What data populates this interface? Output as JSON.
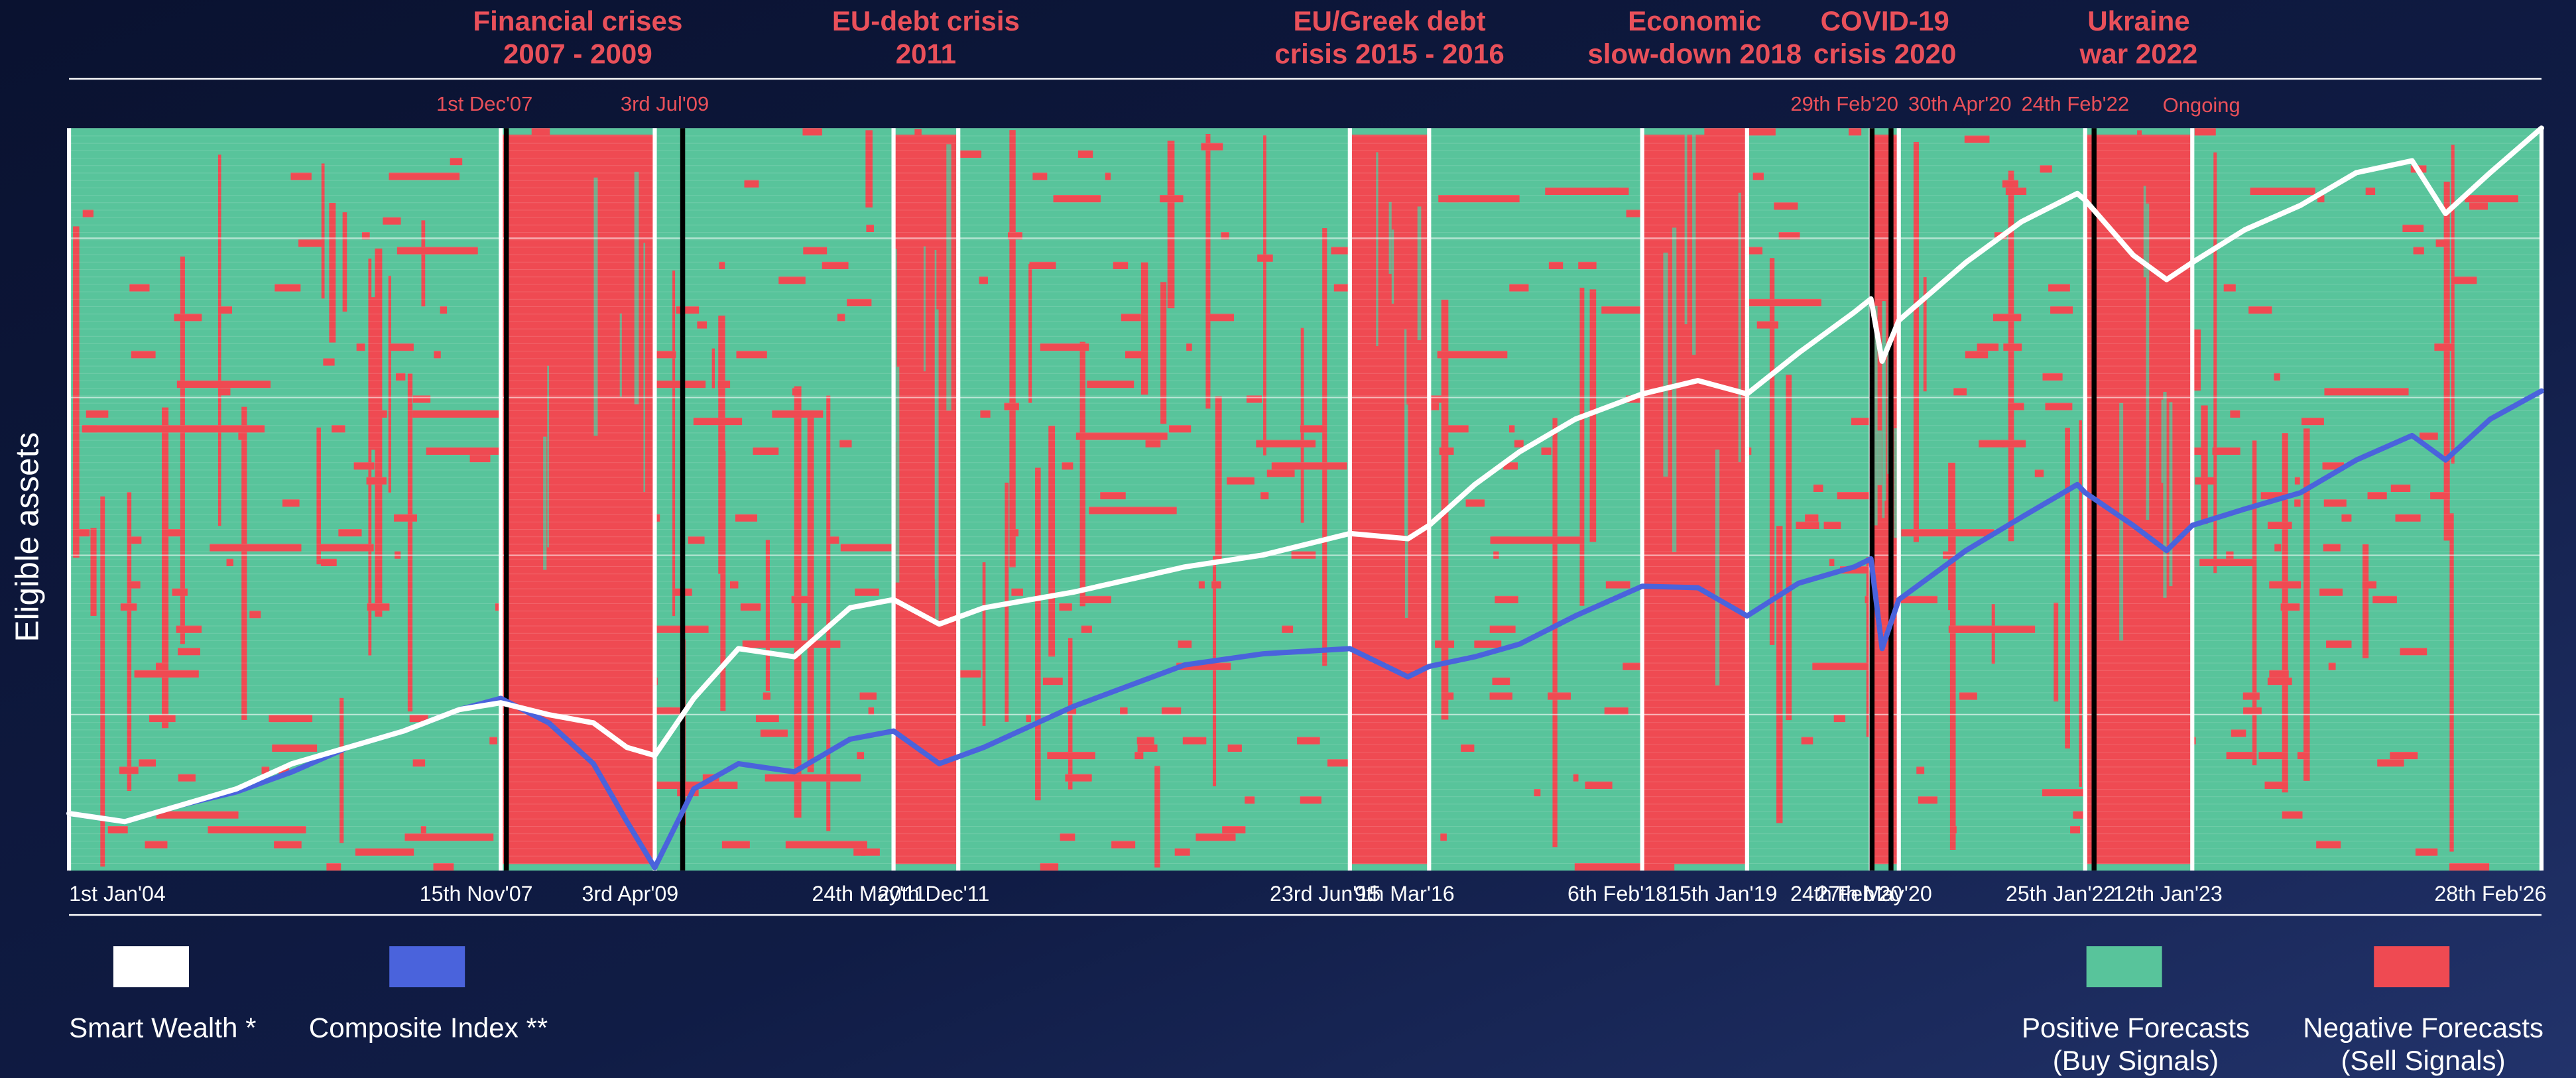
{
  "chart_data": {
    "type": "line",
    "y_label": "Eligible assets",
    "xlim": [
      2004.0,
      2026.16
    ],
    "ylim": [
      0,
      100
    ],
    "xticks": [
      {
        "value": 2004.0,
        "label": "1st Jan'04"
      },
      {
        "value": 2007.87,
        "label": "15th Nov'07"
      },
      {
        "value": 2009.25,
        "label": "3rd Apr'09"
      },
      {
        "value": 2011.39,
        "label": "24th May'11"
      },
      {
        "value": 2011.97,
        "label": "20th Dec'11"
      },
      {
        "value": 2015.48,
        "label": "23rd Jun'15"
      },
      {
        "value": 2016.19,
        "label": "9th Mar'16"
      },
      {
        "value": 2018.1,
        "label": "6th Feb'18"
      },
      {
        "value": 2019.04,
        "label": "15th Jan'19"
      },
      {
        "value": 2020.15,
        "label": "24th Feb'20"
      },
      {
        "value": 2020.4,
        "label": "27th May'20"
      },
      {
        "value": 2022.07,
        "label": "25th Jan'22"
      },
      {
        "value": 2023.03,
        "label": "12th Jan'23"
      },
      {
        "value": 2026.16,
        "label": "28th Feb'26"
      }
    ],
    "crises": [
      {
        "title": [
          "Financial crises",
          "2007 - 2009"
        ],
        "start": 2007.87,
        "end": 2009.25
      },
      {
        "title": [
          "EU-debt crisis",
          "2011"
        ],
        "start": 2011.39,
        "end": 2011.97
      },
      {
        "title": [
          "EU/Greek debt",
          "crisis 2015 - 2016"
        ],
        "start": 2015.48,
        "end": 2016.19
      },
      {
        "title": [
          "Economic",
          "slow-down 2018"
        ],
        "start": 2018.1,
        "end": 2019.04
      },
      {
        "title": [
          "COVID-19",
          "crisis 2020"
        ],
        "start": 2020.15,
        "end": 2020.4
      },
      {
        "title": [
          "Ukraine",
          "war 2022"
        ],
        "start": 2022.07,
        "end": 2023.03,
        "status": "Ongoing"
      }
    ],
    "events": [
      {
        "label": "1st Dec'07",
        "x": 2007.92
      },
      {
        "label": "3rd Jul'09",
        "x": 2009.5
      },
      {
        "label": "29th Feb'20",
        "x": 2020.16
      },
      {
        "label": "30th Apr'20",
        "x": 2020.33
      },
      {
        "label": "24th Feb'22",
        "x": 2022.15
      }
    ],
    "x": [
      2004.0,
      2004.5,
      2005.0,
      2005.5,
      2006.0,
      2006.5,
      2007.0,
      2007.5,
      2007.87,
      2008.3,
      2008.7,
      2009.0,
      2009.25,
      2009.6,
      2010.0,
      2010.5,
      2011.0,
      2011.39,
      2011.8,
      2012.2,
      2013.0,
      2014.0,
      2014.7,
      2015.48,
      2016.0,
      2016.19,
      2016.6,
      2017.0,
      2017.5,
      2018.1,
      2018.6,
      2019.04,
      2019.5,
      2020.0,
      2020.15,
      2020.25,
      2020.4,
      2021.0,
      2021.5,
      2022.0,
      2022.07,
      2022.5,
      2022.8,
      2023.03,
      2023.5,
      2024.0,
      2024.5,
      2025.0,
      2025.3,
      2025.7,
      2026.16
    ],
    "series": [
      {
        "name": "Smart Wealth *",
        "color": "#ffffff",
        "values": [
          7.7,
          6.6,
          8.8,
          11,
          14.4,
          16.6,
          18.8,
          21.7,
          22.6,
          21,
          19.9,
          16.6,
          15.5,
          23.2,
          29.9,
          28.8,
          35.4,
          36.5,
          33.2,
          35.4,
          37.5,
          40.9,
          42.5,
          45.4,
          44.7,
          46.5,
          52,
          56.4,
          60.8,
          64.2,
          66,
          64.2,
          69.7,
          75.2,
          77,
          68.6,
          74.1,
          81.9,
          87.4,
          91.2,
          90.3,
          82.9,
          79.6,
          81.9,
          86.3,
          89.6,
          94,
          95.6,
          88.5,
          94,
          100
        ]
      },
      {
        "name": "Composite Index **",
        "color": "#4a63dc",
        "values": [
          7.7,
          6.6,
          8.8,
          10.6,
          13.3,
          16.6,
          18.8,
          21.7,
          23.2,
          19.9,
          14.4,
          6.6,
          0.4,
          11,
          14.4,
          13.3,
          17.7,
          18.8,
          14.4,
          16.6,
          22.1,
          27.7,
          29.2,
          29.9,
          26.1,
          27.5,
          28.8,
          30.5,
          34.3,
          38.3,
          38.1,
          34.3,
          38.7,
          40.9,
          42,
          29.9,
          36.5,
          43.1,
          47.6,
          52,
          50.9,
          46.5,
          43.1,
          46.5,
          48.7,
          50.9,
          55.3,
          58.6,
          55.3,
          60.8,
          64.6
        ]
      }
    ],
    "heatmap": {
      "positive": {
        "name": "Positive Forecasts",
        "note": "(Buy Signals)",
        "color": "#58c49b"
      },
      "negative": {
        "name": "Negative Forecasts",
        "note": "(Sell Signals)",
        "color": "#ef4a52"
      }
    }
  }
}
